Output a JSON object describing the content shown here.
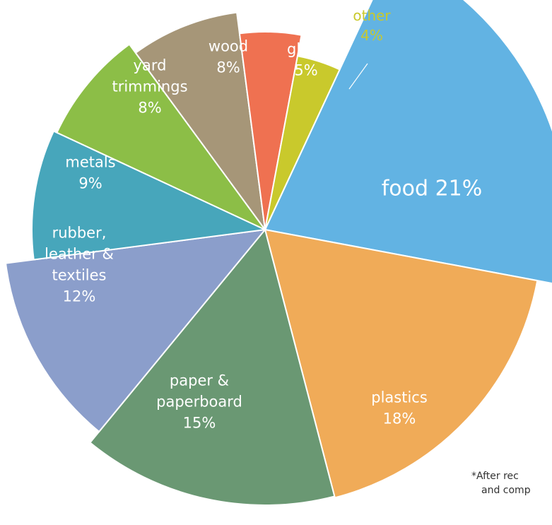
{
  "chart_data": {
    "type": "pie",
    "title": "",
    "slices": [
      {
        "label_lines": [
          "food",
          "21%"
        ],
        "value": 21,
        "color": "#62b3e3"
      },
      {
        "label_lines": [
          "plastics",
          "18%"
        ],
        "value": 18,
        "color": "#f0ab58"
      },
      {
        "label_lines": [
          "paper &",
          "paperboard",
          "15%"
        ],
        "value": 15,
        "color": "#6a9873"
      },
      {
        "label_lines": [
          "rubber,",
          "leather &",
          "textiles",
          "12%"
        ],
        "value": 12,
        "color": "#8b9ecb"
      },
      {
        "label_lines": [
          "metals",
          "9%"
        ],
        "value": 9,
        "color": "#47a6bb"
      },
      {
        "label_lines": [
          "yard",
          "trimmings",
          "8%"
        ],
        "value": 8,
        "color": "#8cbe47"
      },
      {
        "label_lines": [
          "wood",
          "8%"
        ],
        "value": 8,
        "color": "#a69678"
      },
      {
        "label_lines": [
          "glass",
          "5%"
        ],
        "value": 5,
        "color": "#ef7151"
      },
      {
        "label_lines": [
          "other",
          "4%"
        ],
        "value": 4,
        "color": "#c9c92c"
      }
    ],
    "footnote_lines": [
      "*After rec",
      "and comp"
    ],
    "legend": "none",
    "label_color_other": "#c9c92c"
  }
}
